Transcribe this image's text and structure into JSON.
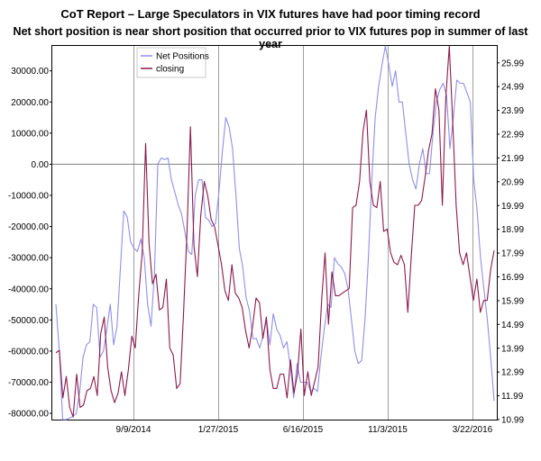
{
  "chart_data": {
    "type": "line",
    "title": "CoT Report – Large Speculators in VIX futures have had poor timing record",
    "subtitle": "Net short position is near short position that occurred prior to VIX futures pop in summer of last year",
    "x_ticks": [
      "9/9/2014",
      "1/27/2015",
      "6/16/2015",
      "11/3/2015",
      "3/22/2016"
    ],
    "y_left": {
      "ticks": [
        "30000.00",
        "20000.00",
        "10000.00",
        "0.00",
        "-10000.00",
        "-20000.00",
        "-30000.00",
        "-40000.00",
        "-50000.00",
        "-60000.00",
        "-70000.00",
        "-80000.00"
      ],
      "min": -82000,
      "max": 38000
    },
    "y_right": {
      "ticks": [
        "25.99",
        "24.99",
        "23.99",
        "22.99",
        "21.99",
        "20.99",
        "19.99",
        "18.99",
        "17.99",
        "16.99",
        "15.99",
        "14.99",
        "13.99",
        "12.99",
        "11.99",
        "10.99"
      ],
      "min": 10.99,
      "max": 26.7
    },
    "legend_placement": "top-left",
    "grid": "vertical lines at x ticks, horizontal line at 0",
    "series": [
      {
        "name": "Net Positions",
        "axis": "left",
        "color": "#8f8fe8",
        "values": [
          -45000,
          -60000,
          -82000,
          -82000,
          -81500,
          -81000,
          -80000,
          -73000,
          -62000,
          -58000,
          -57000,
          -45000,
          -46000,
          -62000,
          -60000,
          -53000,
          -45000,
          -58000,
          -52000,
          -33000,
          -15000,
          -17000,
          -25000,
          -27000,
          -28000,
          -24000,
          -30000,
          -45000,
          -52000,
          -35000,
          0,
          2000,
          1500,
          2000,
          -5000,
          -9000,
          -13000,
          -16000,
          -22000,
          -28000,
          -29000,
          -10000,
          -5000,
          -5000,
          -17000,
          -18000,
          -20000,
          -19000,
          -9000,
          4000,
          15000,
          12000,
          5000,
          -10000,
          -27000,
          -33000,
          -43000,
          -47000,
          -56000,
          -56000,
          -59000,
          -55000,
          -50000,
          -58000,
          -48000,
          -53000,
          -55000,
          -59000,
          -57000,
          -65000,
          -75000,
          -64000,
          -70000,
          -70000,
          -70000,
          -73000,
          -72000,
          -73000,
          -62000,
          -53000,
          -45000,
          -46000,
          -30000,
          -32000,
          -33000,
          -35000,
          -40000,
          -50000,
          -60000,
          -64000,
          -63000,
          -50000,
          -30000,
          -5000,
          15000,
          25000,
          32000,
          38000,
          32000,
          25000,
          30000,
          20000,
          20000,
          10000,
          0,
          -5000,
          -8000,
          0,
          5000,
          -3000,
          -3000,
          10000,
          20000,
          24000,
          26000,
          22000,
          5000,
          15000,
          27000,
          26000,
          26000,
          23000,
          20000,
          -5000,
          -15000,
          -30000,
          -40000,
          -50000,
          -62000,
          -76000
        ]
      },
      {
        "name": "closing",
        "axis": "right",
        "color": "#8b1a4b",
        "values": [
          13.8,
          13.9,
          11.9,
          12.8,
          11.5,
          11.1,
          12.9,
          11.5,
          11.6,
          12.2,
          12.3,
          12.8,
          12.0,
          14.6,
          15.3,
          13.2,
          12.2,
          11.7,
          12.1,
          13.0,
          12.0,
          13.1,
          14.5,
          14.0,
          16.2,
          18.0,
          22.6,
          18.4,
          16.7,
          17.1,
          15.6,
          15.7,
          16.9,
          14.0,
          13.7,
          12.3,
          12.5,
          15.5,
          18.9,
          23.3,
          18.3,
          17.0,
          19.6,
          21.0,
          20.4,
          19.4,
          19.1,
          18.3,
          17.5,
          16.4,
          16.0,
          17.5,
          16.3,
          16.1,
          15.7,
          14.7,
          14.0,
          14.9,
          16.1,
          15.9,
          14.4,
          15.3,
          13.1,
          12.3,
          12.3,
          12.9,
          12.9,
          11.9,
          13.5,
          12.1,
          12.9,
          14.8,
          12.0,
          13.0,
          12.0,
          12.6,
          13.2,
          16.0,
          18.0,
          15.0,
          17.2,
          16.2,
          16.2,
          16.3,
          16.4,
          16.5,
          19.9,
          20.0,
          21.0,
          23.1,
          24.0,
          21.0,
          20.0,
          19.9,
          21.0,
          18.9,
          19.0,
          18.0,
          17.6,
          17.5,
          17.9,
          17.5,
          15.5,
          17.9,
          20.0,
          20.0,
          20.2,
          21.2,
          22.3,
          23.0,
          24.9,
          24.0,
          20.0,
          24.5,
          26.7,
          23.5,
          20.0,
          18.0,
          17.5,
          18.0,
          17.0,
          16.0,
          16.9,
          15.5,
          16.0,
          16.0,
          17.3,
          18.1
        ]
      }
    ]
  }
}
